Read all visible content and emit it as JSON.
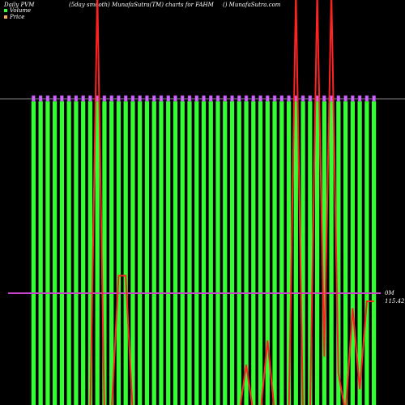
{
  "chart_data": {
    "type": "bar",
    "title": "Daily PVM",
    "subtitle": "(5day smooth) MunafaSutra(TM) charts for FAHM",
    "source": "() MunafaSutra.com",
    "background": "#000000",
    "series": [
      {
        "name": "Volume",
        "color": "#33ff33",
        "values": [
          1,
          1,
          1,
          1,
          1,
          1,
          1,
          1,
          1,
          1,
          1,
          1,
          1,
          1,
          1,
          1,
          1,
          1,
          1,
          1,
          1,
          1,
          1,
          1,
          1,
          1,
          1,
          1,
          1,
          1,
          1,
          1,
          1,
          1,
          1,
          1,
          1,
          1,
          1,
          1,
          1,
          1,
          1,
          1,
          1,
          1,
          1,
          1,
          1
        ]
      },
      {
        "name": "Price",
        "color": "#ff2222",
        "axis": "y2",
        "values": [
          108.5,
          108.5,
          108.5,
          108.5,
          108.5,
          108.5,
          108.5,
          108.5,
          108.5,
          134.5,
          108.5,
          108.5,
          117,
          117,
          108.5,
          108.5,
          108.5,
          108.5,
          108.5,
          108.5,
          108.5,
          108.5,
          108.5,
          108.5,
          108.5,
          108.5,
          108.5,
          108.5,
          108.5,
          108.5,
          111.5,
          108.5,
          108.5,
          113,
          108.5,
          108.5,
          108.5,
          134.5,
          108.5,
          108.5,
          134.5,
          112,
          134.5,
          111,
          108.5,
          115,
          110,
          115.42,
          115.42
        ]
      }
    ],
    "ylim": [
      0,
      1
    ],
    "y2lim": [
      109.02,
      134.02
    ],
    "volume_label": "0M",
    "price_label": "115.42"
  }
}
